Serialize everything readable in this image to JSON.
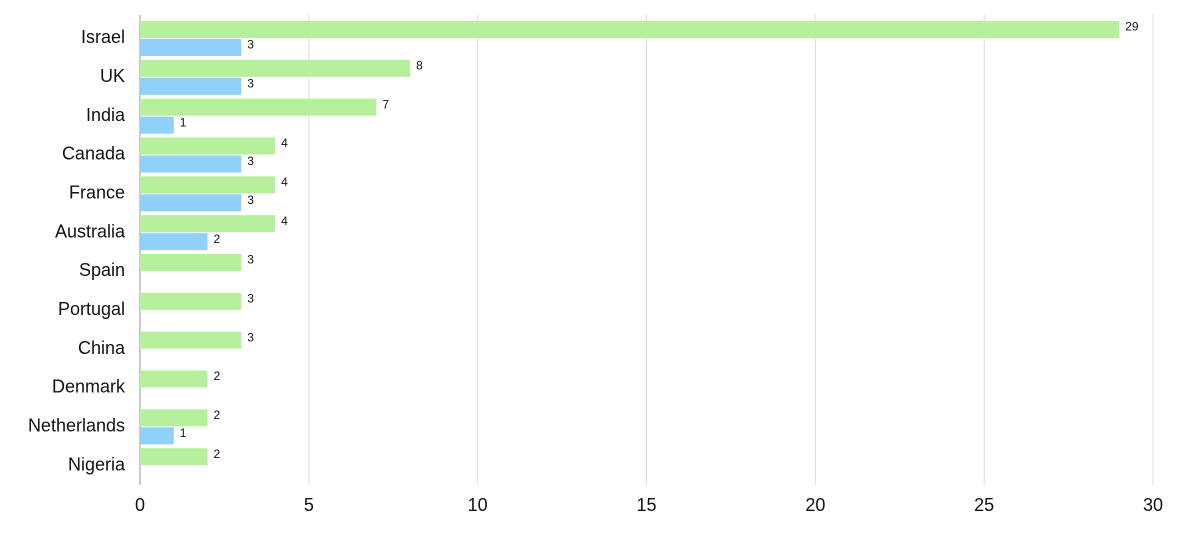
{
  "chart_data": {
    "type": "bar",
    "orientation": "horizontal",
    "categories": [
      "Israel",
      "UK",
      "India",
      "Canada",
      "France",
      "Australia",
      "Spain",
      "Portugal",
      "China",
      "Denmark",
      "Netherlands",
      "Nigeria"
    ],
    "series": [
      {
        "color": "#b6f09c",
        "values": [
          29,
          8,
          7,
          4,
          4,
          4,
          3,
          3,
          3,
          2,
          2,
          2
        ]
      },
      {
        "color": "#8fd1f9",
        "values": [
          3,
          3,
          1,
          3,
          3,
          2,
          null,
          null,
          null,
          null,
          1,
          null
        ]
      }
    ],
    "xlim": [
      0,
      30
    ],
    "xticks": [
      0,
      5,
      10,
      15,
      20,
      25,
      30
    ],
    "grid": true
  }
}
